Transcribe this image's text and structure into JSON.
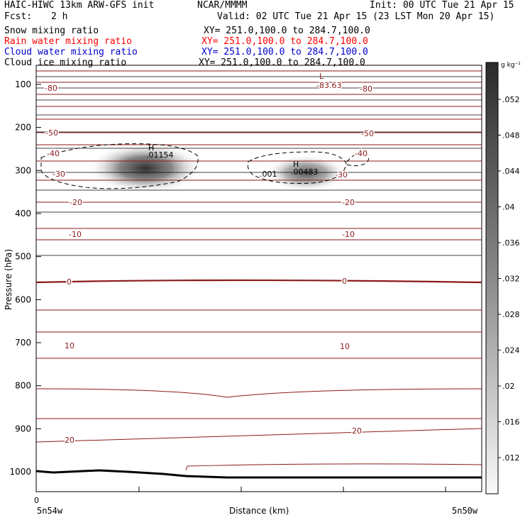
{
  "header": {
    "title": "HAIC-HIWC 13km ARW-GFS init",
    "org": "NCAR/MMMM",
    "init": "Init: 00 UTC Tue 21 Apr 15",
    "fcst_label": "Fcst:",
    "fcst_value": "2 h",
    "valid": "Valid: 02 UTC Tue 21 Apr 15 (23 LST Mon 20 Apr 15)"
  },
  "fields": [
    {
      "name": "Snow mixing ratio",
      "xy": "XY= 251.0,100.0 to 284.7,100.0",
      "color": "#000000"
    },
    {
      "name": "Rain water mixing ratio",
      "xy": "XY= 251.0,100.0 to 284.7,100.0",
      "color": "#ff0000"
    },
    {
      "name": "Cloud water mixing ratio",
      "xy": "XY= 251.0,100.0 to 284.7,100.0",
      "color": "#0000cc"
    },
    {
      "name": "Cloud ice mixing ratio",
      "xy": "XY= 251.0,100.0 to 284.7,100.0",
      "color": "#000000"
    }
  ],
  "chart_data": {
    "type": "cross-section",
    "ylabel": "Pressure (hPa)",
    "xlabel": "Distance (km)",
    "y_ticks": [
      100,
      200,
      300,
      400,
      500,
      600,
      700,
      800,
      900,
      1000
    ],
    "x_tick_label": "0",
    "x_left_label": "5n54w",
    "x_right_label": "5n50w",
    "colorbar": {
      "unit": "g kg⁻¹",
      "ticks": [
        ".052",
        ".048",
        ".044",
        ".04",
        ".036",
        ".032",
        ".028",
        ".024",
        ".02",
        ".016",
        ".012"
      ]
    },
    "temperature_labels": [
      "-80",
      "-50",
      "-40",
      "-30",
      "-20",
      "-10",
      "0",
      "10",
      "20"
    ],
    "extrema": [
      {
        "type": "L",
        "value": "-83.63"
      },
      {
        "type": "H",
        "value": ".01154"
      },
      {
        "type": "H",
        "value": ".00483"
      }
    ],
    "contour_label": ".001",
    "colors": {
      "temperature": "#8b1a1a",
      "rain": "#ff0000",
      "cloud_water": "#0000cc",
      "grid": "#000000"
    }
  }
}
